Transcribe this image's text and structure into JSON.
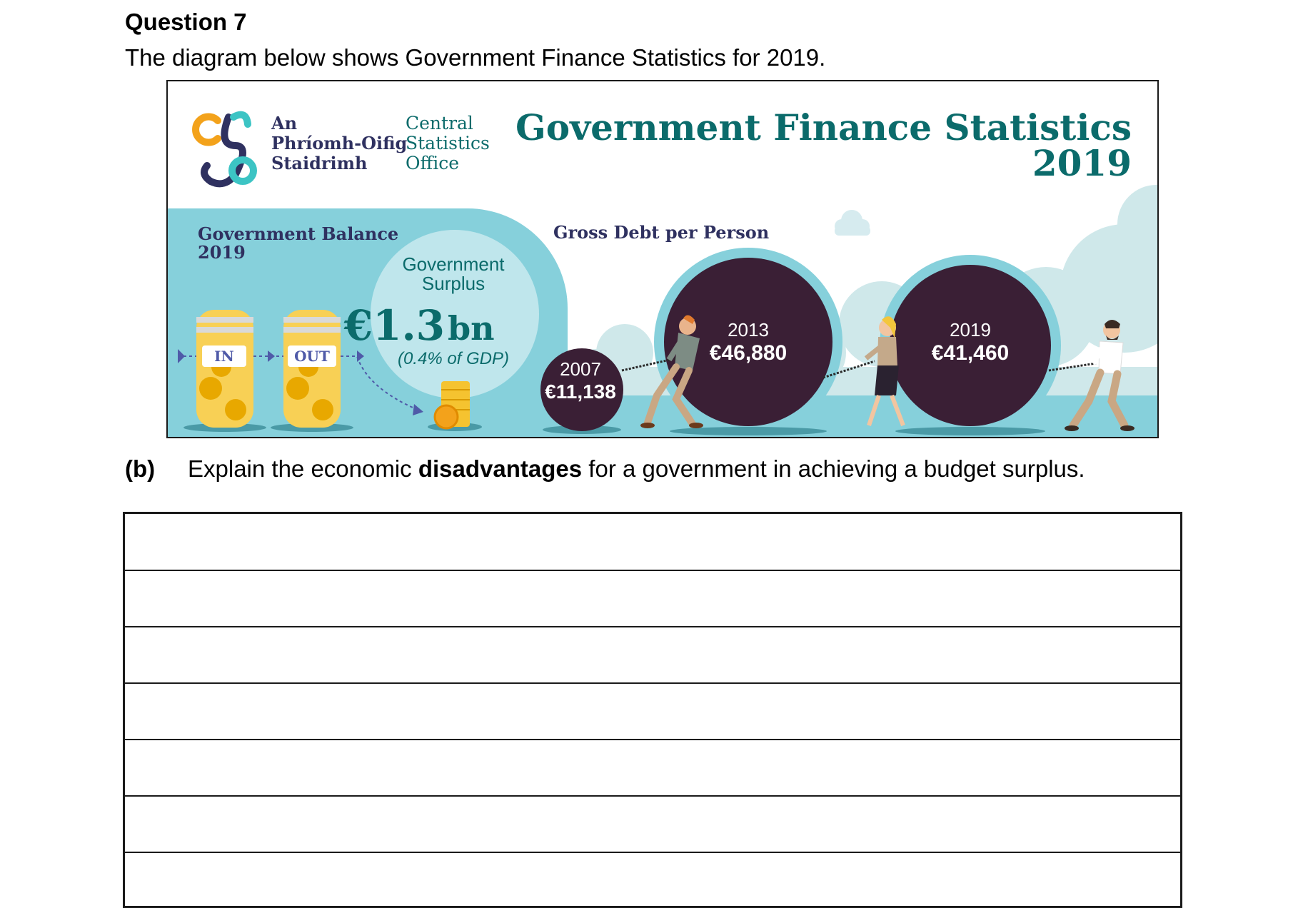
{
  "question": {
    "title": "Question 7",
    "intro": "The diagram below shows Government Finance Statistics for 2019."
  },
  "infographic": {
    "logo": {
      "irish_line1": "An",
      "irish_line2": "Phríomh-Oifig",
      "irish_line3": "Staidrimh",
      "english_line1": "Central",
      "english_line2": "Statistics",
      "english_line3": "Office"
    },
    "title_line1": "Government Finance Statistics",
    "title_line2": "2019",
    "balance": {
      "heading_line1": "Government Balance",
      "heading_line2": "2019",
      "jar_in": "IN",
      "jar_out": "OUT",
      "surplus_line1": "Government",
      "surplus_line2": "Surplus",
      "surplus_value": "€1.3",
      "surplus_unit": "bn",
      "surplus_share": "(0.4% of GDP)"
    },
    "debt": {
      "heading": "Gross Debt per Person",
      "balls": [
        {
          "year": "2007",
          "value": "€11,138"
        },
        {
          "year": "2013",
          "value": "€46,880"
        },
        {
          "year": "2019",
          "value": "€41,460"
        }
      ]
    },
    "colors": {
      "teal_dark": "#0b6b6b",
      "teal_bg": "#86d0db",
      "navy": "#2f3160",
      "ball": "#3a1f35",
      "orange": "#f3a21b"
    }
  },
  "part_b": {
    "label": "(b)",
    "text_before": "Explain the economic ",
    "text_bold": "disadvantages",
    "text_after": " for a government in achieving a budget surplus."
  },
  "answer_lines": 7
}
